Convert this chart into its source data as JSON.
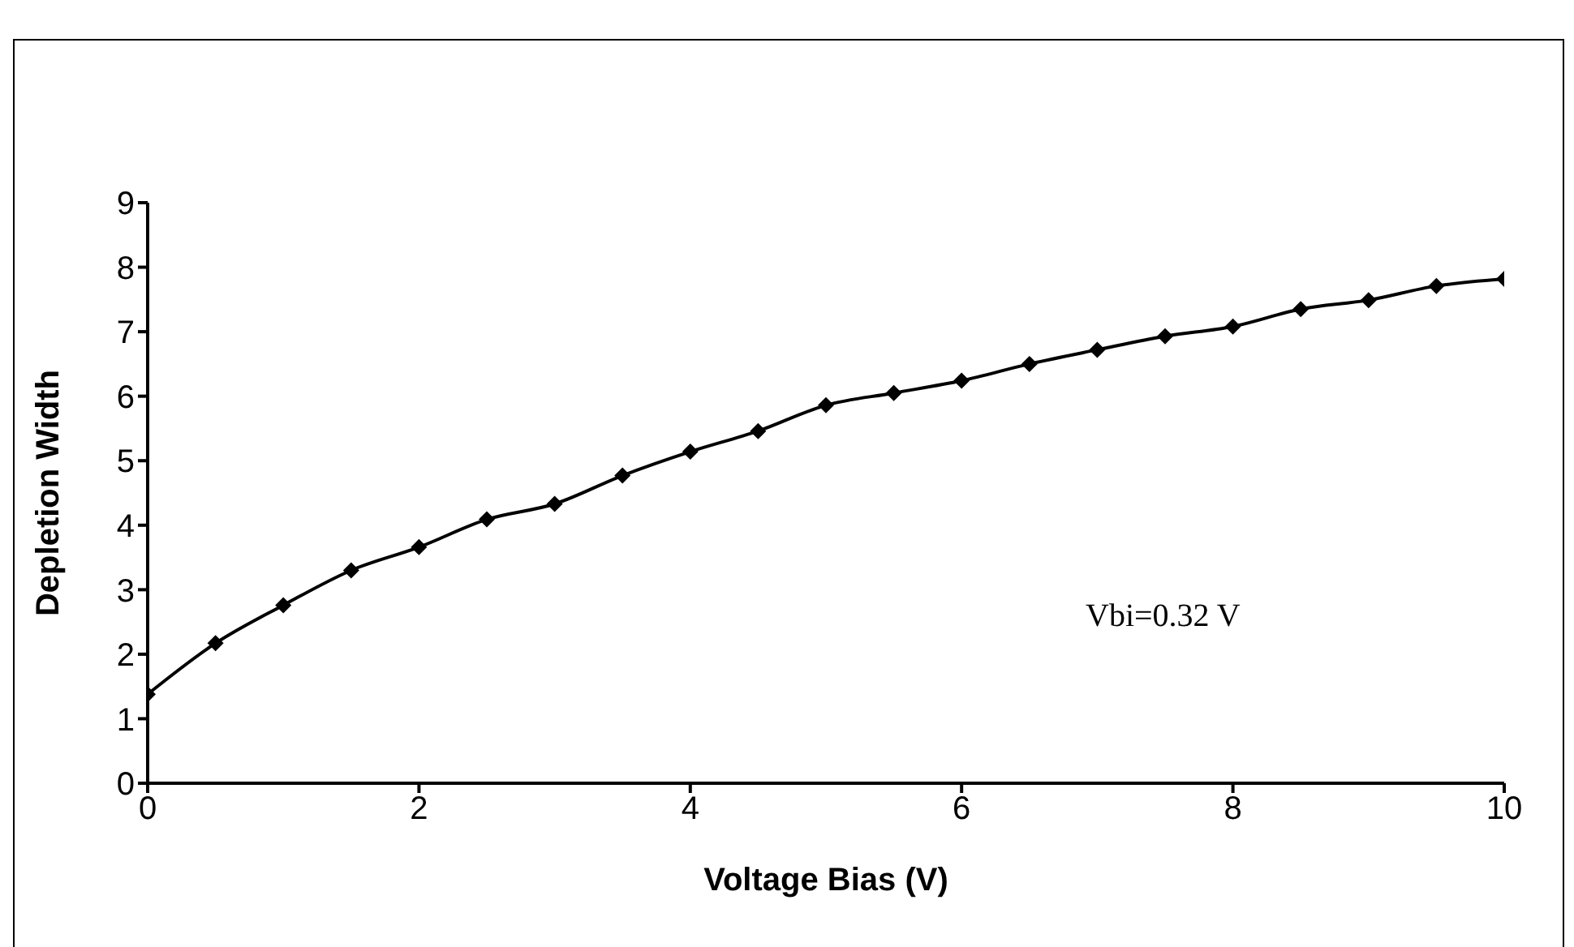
{
  "chart_data": {
    "type": "line",
    "xlabel": "Voltage Bias (V)",
    "ylabel": "Depletion Width",
    "x": [
      0,
      0.5,
      1,
      1.5,
      2,
      2.5,
      3,
      3.5,
      4,
      4.5,
      5,
      5.5,
      6,
      6.5,
      7,
      7.5,
      8,
      8.5,
      9,
      9.5,
      10
    ],
    "series": [
      {
        "color": "#000000",
        "values": [
          1.38,
          2.17,
          2.76,
          3.3,
          3.66,
          4.09,
          4.33,
          4.77,
          5.14,
          5.46,
          5.86,
          6.05,
          6.24,
          6.5,
          6.72,
          6.93,
          7.08,
          7.35,
          7.49,
          7.71,
          7.82
        ]
      }
    ],
    "xlim": [
      0,
      10
    ],
    "xticks": [
      0,
      2,
      4,
      6,
      8,
      10
    ],
    "ylim": [
      0,
      9
    ],
    "yticks": [
      0,
      1,
      2,
      3,
      4,
      5,
      6,
      7,
      8,
      9
    ],
    "annotations": [
      "Vbi=0.32 V"
    ],
    "grid": false,
    "legend": false,
    "marker": "diamond",
    "line_style": "solid"
  }
}
